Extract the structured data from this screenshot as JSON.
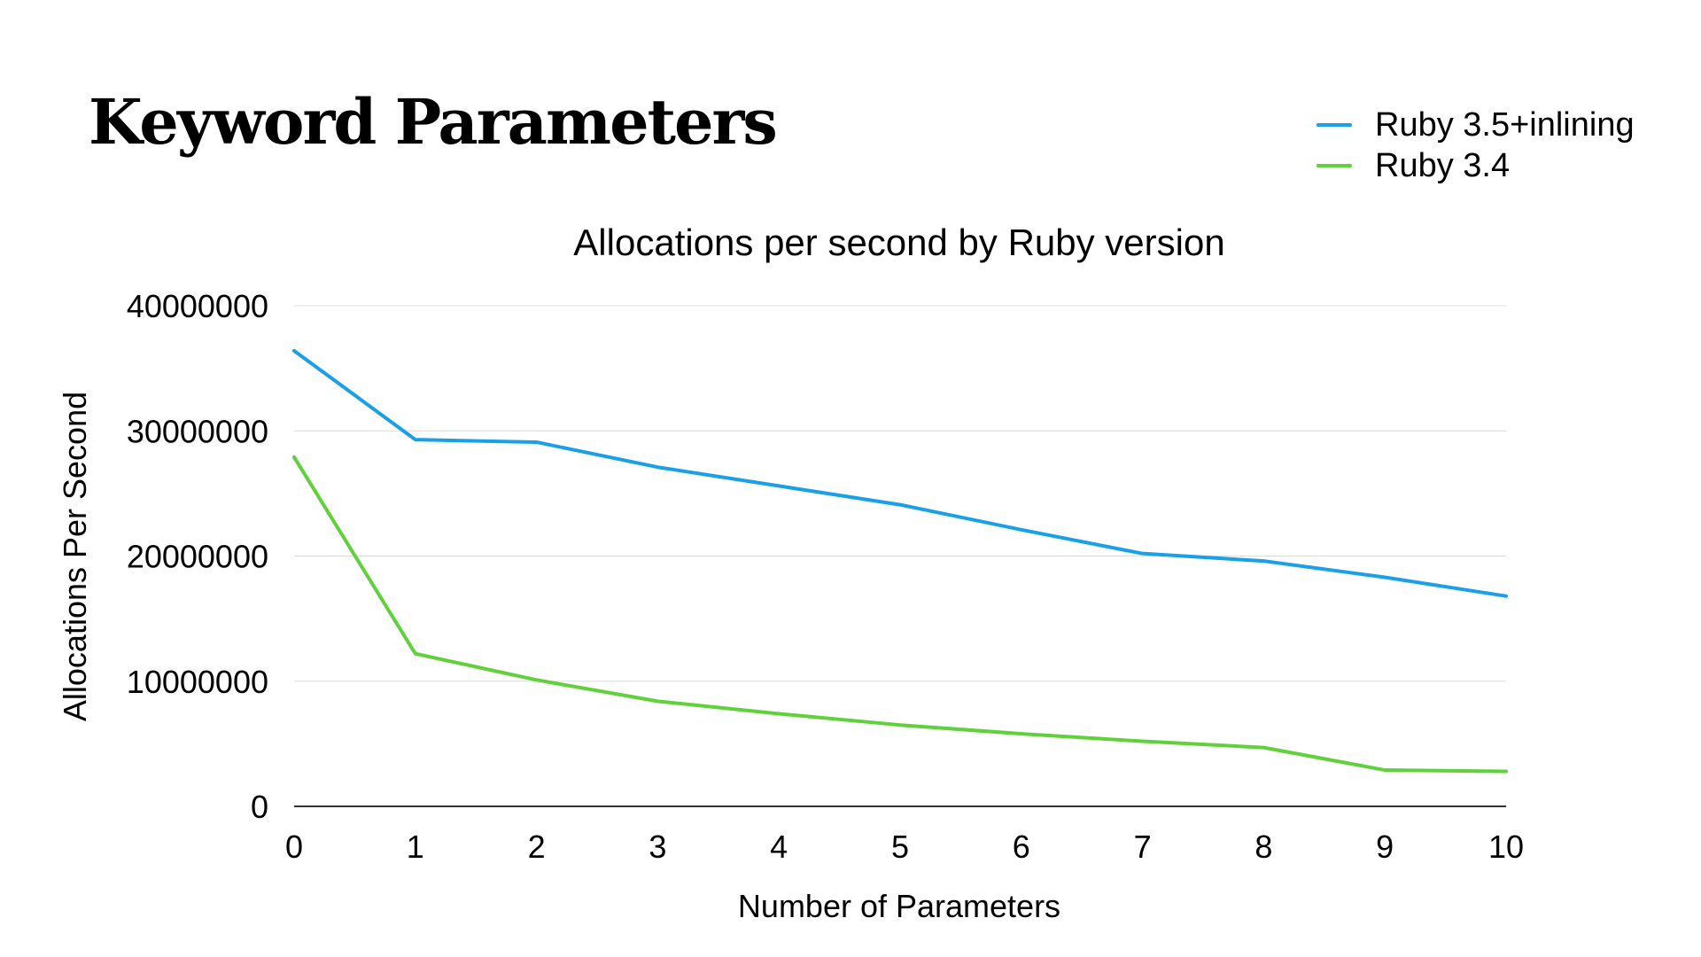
{
  "slide": {
    "title": "Keyword Parameters"
  },
  "chart_data": {
    "type": "line",
    "title": "Allocations per second by Ruby version",
    "xlabel": "Number of Parameters",
    "ylabel": "Allocations Per Second",
    "x": [
      0,
      1,
      2,
      3,
      4,
      5,
      6,
      7,
      8,
      9,
      10
    ],
    "x_tick_labels": [
      "0",
      "1",
      "2",
      "3",
      "4",
      "5",
      "6",
      "7",
      "8",
      "9",
      "10"
    ],
    "ylim": [
      0,
      40000000
    ],
    "y_ticks": [
      0,
      10000000,
      20000000,
      30000000,
      40000000
    ],
    "y_tick_labels": [
      "0",
      "10000000",
      "20000000",
      "30000000",
      "40000000"
    ],
    "grid": true,
    "legend_position": "top-right",
    "series": [
      {
        "name": "Ruby 3.5+inlining",
        "color": "#1aa0e6",
        "values": [
          36400000,
          29300000,
          29100000,
          27100000,
          25600000,
          24100000,
          22100000,
          20200000,
          19600000,
          18300000,
          16800000
        ]
      },
      {
        "name": "Ruby 3.4",
        "color": "#5fd13a",
        "values": [
          27900000,
          12200000,
          10100000,
          8400000,
          7400000,
          6500000,
          5800000,
          5200000,
          4700000,
          2900000,
          2800000
        ]
      }
    ]
  }
}
